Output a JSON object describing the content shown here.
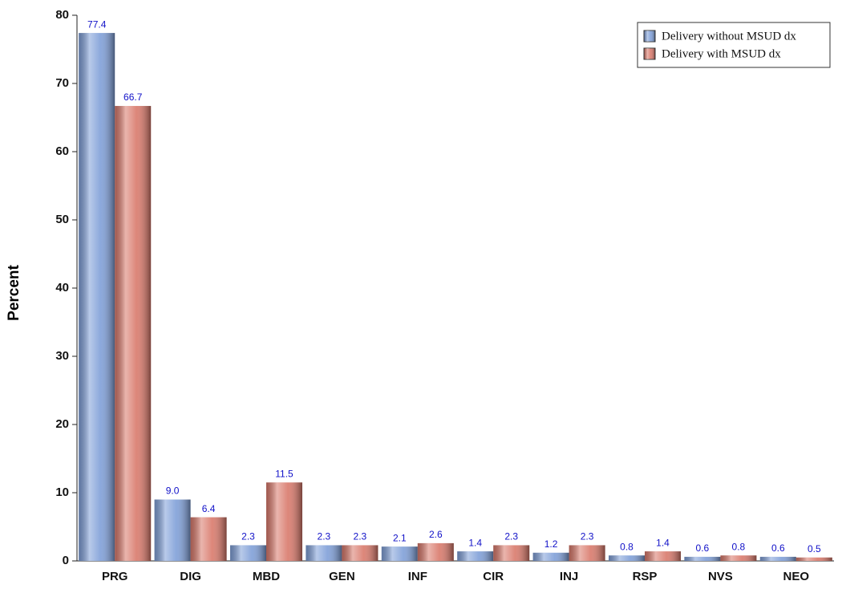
{
  "chart_data": {
    "type": "bar",
    "y_label": "Percent",
    "categories": [
      "PRG",
      "DIG",
      "MBD",
      "GEN",
      "INF",
      "CIR",
      "INJ",
      "RSP",
      "NVS",
      "NEO"
    ],
    "series": [
      {
        "name": "Delivery without MSUD dx",
        "color": "#7f9fd8",
        "values": [
          77.4,
          9.0,
          2.3,
          2.3,
          2.1,
          1.4,
          1.2,
          0.8,
          0.6,
          0.6
        ],
        "value_labels": [
          "77.4",
          "9.0",
          "2.3",
          "2.3",
          "2.1",
          "1.4",
          "1.2",
          "0.8",
          "0.6",
          "0.6"
        ]
      },
      {
        "name": "Delivery with MSUD dx",
        "color": "#d9796b",
        "values": [
          66.7,
          6.4,
          11.5,
          2.3,
          2.6,
          2.3,
          2.3,
          1.4,
          0.8,
          0.5
        ],
        "value_labels": [
          "66.7",
          "6.4",
          "11.5",
          "2.3",
          "2.6",
          "2.3",
          "2.3",
          "1.4",
          "0.8",
          "0.5"
        ]
      }
    ],
    "ylim": [
      0,
      80
    ],
    "yticks": [
      0,
      10,
      20,
      30,
      40,
      50,
      60,
      70,
      80
    ],
    "legend": "upper right"
  }
}
